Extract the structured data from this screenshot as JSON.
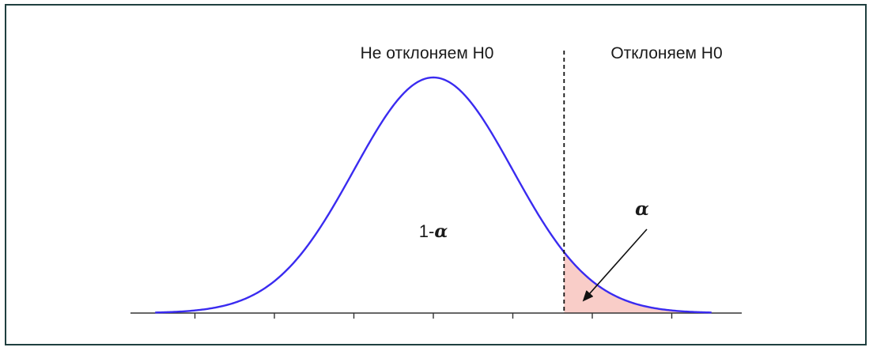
{
  "regions": {
    "accept_label": "Не отклоняем H0",
    "reject_label": "Отклоняем H0"
  },
  "area_labels": {
    "center_prefix": "1-",
    "center_symbol": "α",
    "tail_symbol": "α"
  },
  "colors": {
    "curve": "#3a2bf0",
    "tail_fill": "#f9cdc8",
    "critical_line": "#111111",
    "axis": "#333333",
    "frame_border": "#1f3f3f"
  },
  "chart_data": {
    "type": "area",
    "distribution": "normal",
    "mean": 0,
    "sd": 1,
    "xlim": [
      -3.5,
      3.5
    ],
    "x_ticks": [
      -3,
      -2,
      -1,
      0,
      1,
      2,
      3
    ],
    "critical_value": 1.645,
    "shaded_region": "right-tail",
    "grid": false
  }
}
